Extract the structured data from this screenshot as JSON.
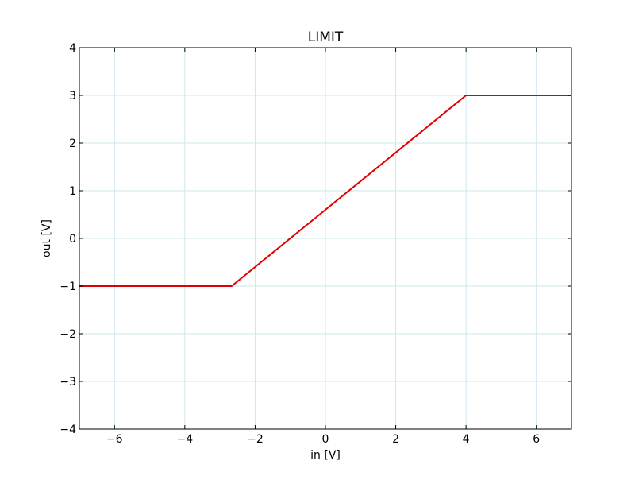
{
  "chart_data": {
    "type": "line",
    "title": "LIMIT",
    "xlabel": "in [V]",
    "ylabel": "out [V]",
    "xlim": [
      -7,
      7
    ],
    "ylim": [
      -4,
      4
    ],
    "xticks": [
      -6,
      -4,
      -2,
      0,
      2,
      4,
      6
    ],
    "yticks": [
      -4,
      -3,
      -2,
      -1,
      0,
      1,
      2,
      3,
      4
    ],
    "xtick_labels": [
      "−6",
      "−4",
      "−2",
      "0",
      "2",
      "4",
      "6"
    ],
    "ytick_labels": [
      "−4",
      "−3",
      "−2",
      "−1",
      "0",
      "1",
      "2",
      "3",
      "4"
    ],
    "grid": true,
    "legend": "none",
    "series": [
      {
        "color": "#e00000",
        "x": [
          -7,
          -2.67,
          4,
          7
        ],
        "y": [
          -1,
          -1,
          3,
          3
        ]
      }
    ]
  }
}
